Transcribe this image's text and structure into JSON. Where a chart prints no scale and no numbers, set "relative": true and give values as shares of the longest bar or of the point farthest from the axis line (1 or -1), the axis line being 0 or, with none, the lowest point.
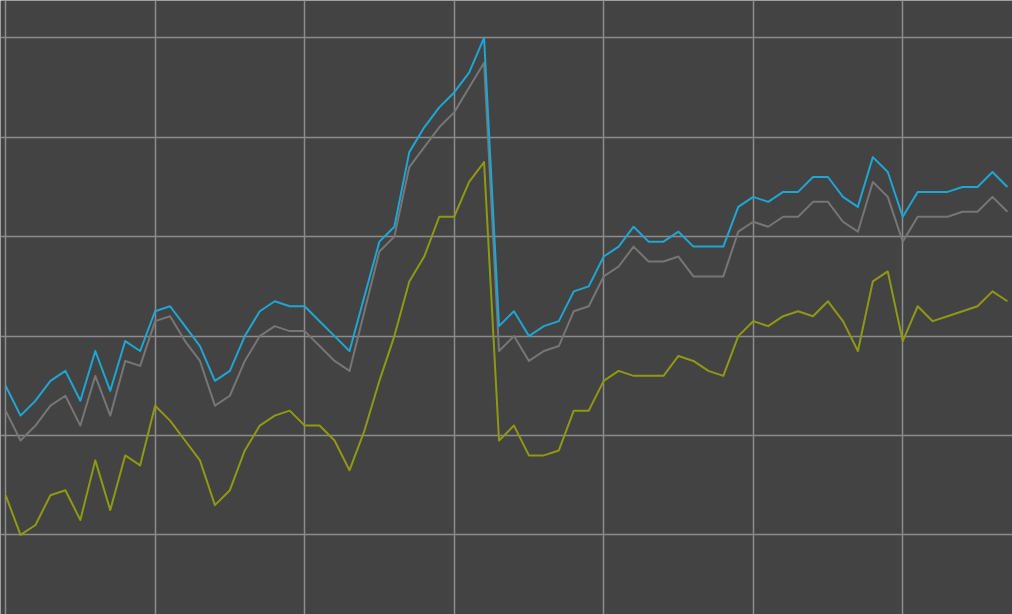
{
  "chart_data": {
    "type": "line",
    "relative": true,
    "grid": true,
    "tick_labels": false,
    "categories": [
      null,
      null,
      null,
      null,
      null,
      null,
      null,
      null,
      null,
      null,
      null,
      null,
      null,
      null,
      null,
      null,
      null,
      null,
      null,
      null,
      null,
      null,
      null,
      null,
      null,
      null,
      null,
      null,
      null,
      null,
      null,
      null,
      null,
      null,
      null,
      null,
      null,
      null,
      null,
      null,
      null,
      null,
      null,
      null,
      null,
      null,
      null,
      null,
      null,
      null,
      null,
      null,
      null,
      null,
      null,
      null,
      null,
      null,
      null,
      null,
      null,
      null,
      null,
      null,
      null,
      null,
      null,
      null
    ],
    "series": [
      {
        "color": "#767676",
        "values": [
          0.25,
          0.19,
          0.22,
          0.26,
          0.28,
          0.22,
          0.32,
          0.24,
          0.35,
          0.34,
          0.43,
          0.44,
          0.39,
          0.35,
          0.26,
          0.28,
          0.35,
          0.4,
          0.42,
          0.41,
          0.41,
          0.38,
          0.35,
          0.33,
          0.45,
          0.57,
          0.6,
          0.74,
          0.78,
          0.82,
          0.85,
          0.9,
          0.95,
          0.37,
          0.4,
          0.35,
          0.37,
          0.38,
          0.45,
          0.46,
          0.52,
          0.54,
          0.58,
          0.55,
          0.55,
          0.56,
          0.52,
          0.52,
          0.52,
          0.61,
          0.63,
          0.62,
          0.64,
          0.64,
          0.67,
          0.67,
          0.63,
          0.61,
          0.71,
          0.68,
          0.59,
          0.64,
          0.64,
          0.64,
          0.65,
          0.65,
          0.68,
          0.65
        ]
      },
      {
        "color": "#1ea6d4",
        "values": [
          0.3,
          0.24,
          0.27,
          0.31,
          0.33,
          0.27,
          0.37,
          0.29,
          0.39,
          0.37,
          0.45,
          0.46,
          0.42,
          0.38,
          0.31,
          0.33,
          0.4,
          0.45,
          0.47,
          0.46,
          0.46,
          0.43,
          0.4,
          0.37,
          0.48,
          0.59,
          0.62,
          0.77,
          0.82,
          0.86,
          0.89,
          0.93,
          1.0,
          0.42,
          0.45,
          0.4,
          0.42,
          0.43,
          0.49,
          0.5,
          0.56,
          0.58,
          0.62,
          0.59,
          0.59,
          0.61,
          0.58,
          0.58,
          0.58,
          0.66,
          0.68,
          0.67,
          0.69,
          0.69,
          0.72,
          0.72,
          0.68,
          0.66,
          0.76,
          0.73,
          0.64,
          0.69,
          0.69,
          0.69,
          0.7,
          0.7,
          0.73,
          0.7
        ]
      },
      {
        "color": "#8e9a12",
        "values": [
          0.08,
          0,
          0.02,
          0.08,
          0.09,
          0.03,
          0.15,
          0.05,
          0.16,
          0.14,
          0.26,
          0.23,
          0.19,
          0.15,
          0.06,
          0.09,
          0.17,
          0.22,
          0.24,
          0.25,
          0.22,
          0.22,
          0.19,
          0.13,
          0.21,
          0.31,
          0.4,
          0.51,
          0.56,
          0.64,
          0.64,
          0.71,
          0.75,
          0.19,
          0.22,
          0.16,
          0.16,
          0.17,
          0.25,
          0.25,
          0.31,
          0.33,
          0.32,
          0.32,
          0.32,
          0.36,
          0.35,
          0.33,
          0.32,
          0.4,
          0.43,
          0.42,
          0.44,
          0.45,
          0.44,
          0.47,
          0.43,
          0.37,
          0.51,
          0.53,
          0.39,
          0.46,
          0.43,
          0.44,
          0.45,
          0.46,
          0.49,
          0.47
        ]
      }
    ]
  }
}
